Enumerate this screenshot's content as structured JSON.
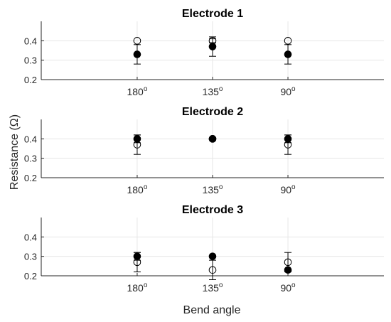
{
  "chart_data": {
    "type": "scatter",
    "ylabel": "Resistance (Ω)",
    "xlabel": "Bend angle",
    "panels": [
      {
        "title": "Electrode 1",
        "categories": [
          {
            "base": "180",
            "sup": "o"
          },
          {
            "base": "135",
            "sup": "o"
          },
          {
            "base": "90",
            "sup": "o"
          }
        ],
        "ylim": [
          0.2,
          0.5
        ],
        "yticks": [
          "0.2",
          "0.3",
          "0.4"
        ],
        "grid": true,
        "series": [
          {
            "marker": "open",
            "values": [
              0.4,
              0.4,
              0.4
            ],
            "err": [
              0,
              0.01,
              0
            ]
          },
          {
            "marker": "filled",
            "values": [
              0.33,
              0.37,
              0.33
            ],
            "err": [
              0.05,
              0.05,
              0.05
            ]
          }
        ]
      },
      {
        "title": "Electrode 2",
        "categories": [
          {
            "base": "180",
            "sup": "o"
          },
          {
            "base": "135",
            "sup": "o"
          },
          {
            "base": "90",
            "sup": "o"
          }
        ],
        "ylim": [
          0.2,
          0.5
        ],
        "yticks": [
          "0.2",
          "0.3",
          "0.4"
        ],
        "grid": true,
        "series": [
          {
            "marker": "open",
            "values": [
              0.37,
              0.4,
              0.37
            ],
            "err": [
              0.05,
              0,
              0.05
            ]
          },
          {
            "marker": "filled",
            "values": [
              0.4,
              0.4,
              0.4
            ],
            "err": [
              0.02,
              0,
              0.02
            ]
          }
        ]
      },
      {
        "title": "Electrode 3",
        "categories": [
          {
            "base": "180",
            "sup": "o"
          },
          {
            "base": "135",
            "sup": "o"
          },
          {
            "base": "90",
            "sup": "o"
          }
        ],
        "ylim": [
          0.2,
          0.5
        ],
        "yticks": [
          "0.2",
          "0.3",
          "0.4"
        ],
        "grid": true,
        "series": [
          {
            "marker": "open",
            "values": [
              0.27,
              0.23,
              0.27
            ],
            "err": [
              0.05,
              0.05,
              0.05
            ]
          },
          {
            "marker": "filled",
            "values": [
              0.3,
              0.3,
              0.23
            ],
            "err": [
              0.02,
              0,
              0
            ]
          }
        ]
      }
    ]
  }
}
